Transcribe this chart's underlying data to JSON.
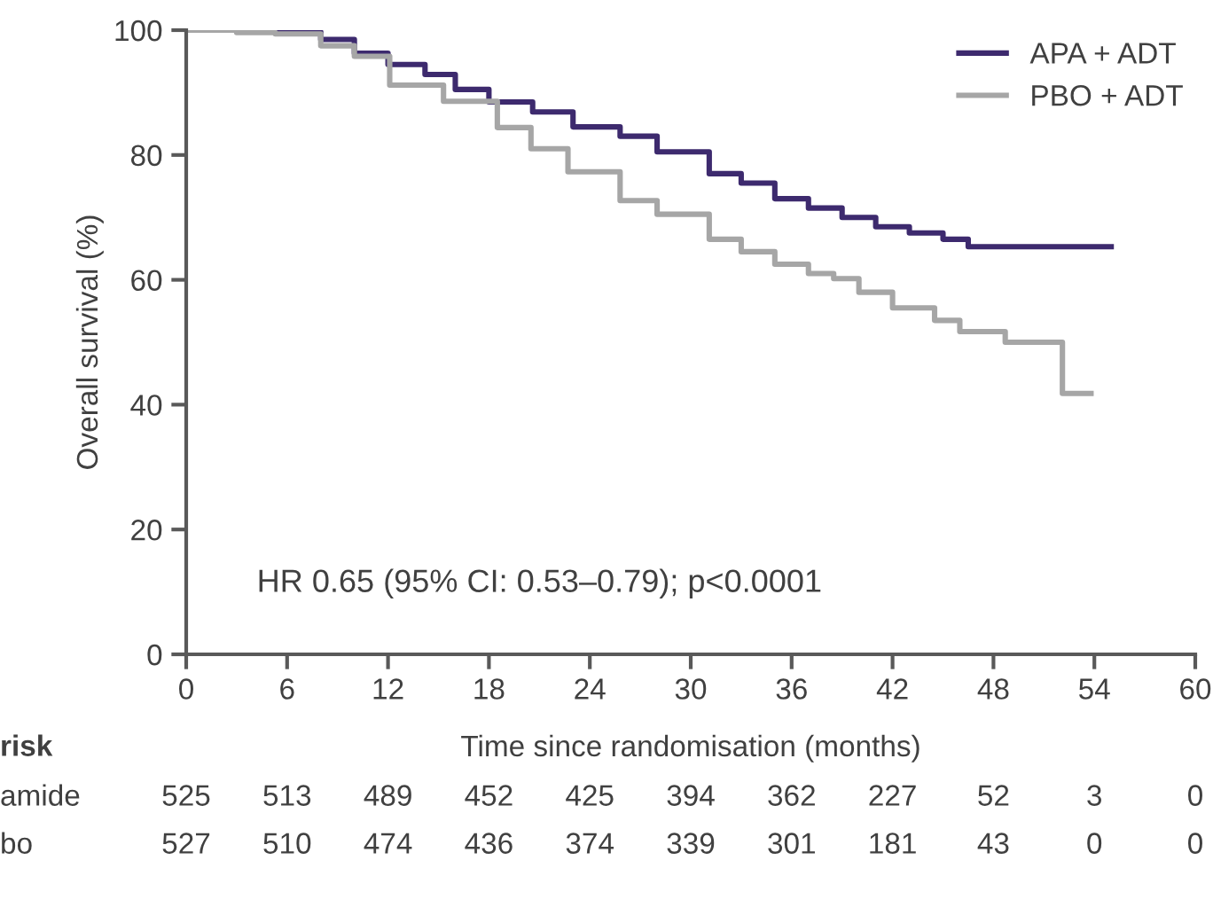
{
  "chart_data": {
    "type": "step",
    "xlabel": "Time since randomisation (months)",
    "ylabel": "Overall survival (%)",
    "series": [
      {
        "name": "APA + ADT",
        "color": "#3d2a6e",
        "x": [
          0,
          5.8,
          8,
          10,
          12,
          14.2,
          16,
          18,
          20.6,
          23,
          25.8,
          28,
          31.1,
          33,
          35,
          37,
          39,
          41,
          43,
          45,
          46.5,
          55
        ],
        "values": [
          100,
          99.7,
          98.5,
          96.3,
          94.5,
          92.9,
          90.5,
          88.5,
          86.9,
          84.5,
          83,
          80.5,
          77,
          75.5,
          73,
          71.5,
          70,
          68.5,
          67.5,
          66.5,
          65.3,
          65.3
        ]
      },
      {
        "name": "PBO + ADT",
        "color": "#a6a6a6",
        "x": [
          0,
          3,
          5.3,
          8,
          10,
          12.1,
          15.3,
          18.5,
          20.5,
          22.7,
          25.8,
          28,
          31.1,
          33,
          35,
          37,
          38.5,
          40,
          42,
          44.5,
          46,
          48.7,
          52.1,
          53.8
        ],
        "values": [
          100,
          99.6,
          99.4,
          97.5,
          95.8,
          91.2,
          88.6,
          84.4,
          81,
          77.3,
          72.7,
          70.5,
          66.5,
          64.5,
          62.5,
          61,
          60.2,
          58,
          55.5,
          53.5,
          51.7,
          50,
          41.8,
          41.8
        ]
      }
    ],
    "xlim": [
      0,
      60
    ],
    "xticks": [
      0,
      6,
      12,
      18,
      24,
      30,
      36,
      42,
      48,
      54,
      60
    ],
    "ylim": [
      0,
      100
    ],
    "yticks": [
      0,
      20,
      40,
      60,
      80,
      100
    ],
    "legend": "top right",
    "grid": false,
    "annotations": [
      "HR 0.65 (95% CI: 0.53–0.79); p<0.0001",
      "risk",
      "amide",
      "525",
      "513",
      "489",
      "452",
      "425",
      "394",
      "362",
      "227",
      "52",
      "3",
      "0",
      "bo",
      "527",
      "510",
      "474",
      "436",
      "374",
      "339",
      "301",
      "181",
      "43",
      "0",
      "0"
    ]
  }
}
